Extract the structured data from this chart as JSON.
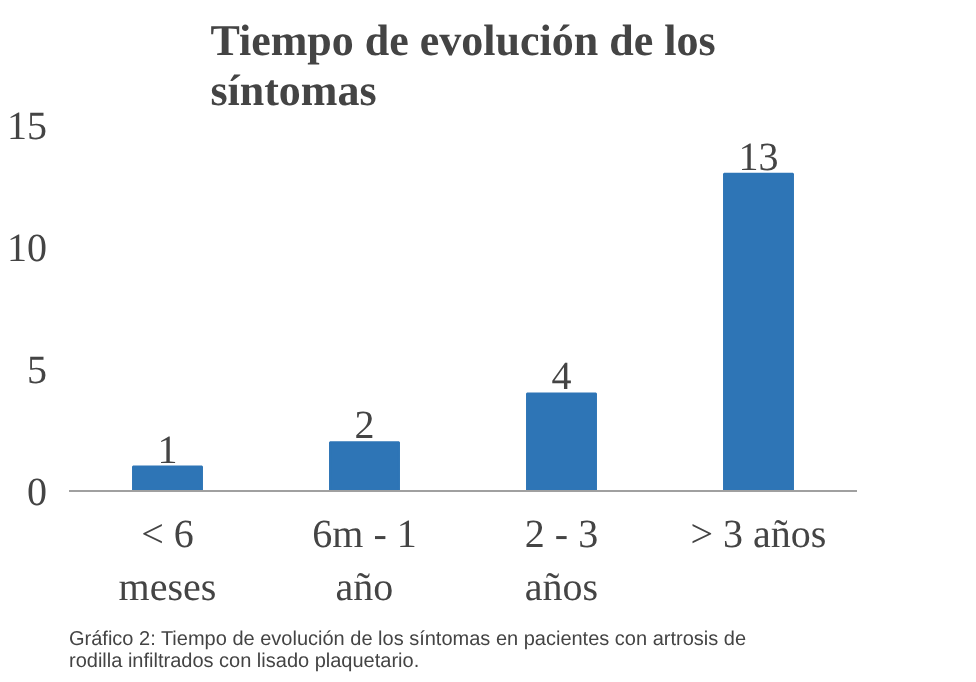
{
  "chart_data": {
    "type": "bar",
    "title": "Tiempo de evolución de los síntomas",
    "categories": [
      "< 6 meses",
      "6m - 1 año",
      "2 - 3 años",
      "> 3 años"
    ],
    "values": [
      1,
      2,
      4,
      13
    ],
    "color": "#2e75b6",
    "ylim": [
      0,
      15
    ],
    "yticks": [
      0,
      5,
      10,
      15
    ],
    "grid": false,
    "data_labels": true,
    "annotations": [
      "Gráfico 2: Tiempo de evolución de los síntomas en pacientes con artrosis de rodilla infiltrados con lisado plaquetario."
    ]
  }
}
